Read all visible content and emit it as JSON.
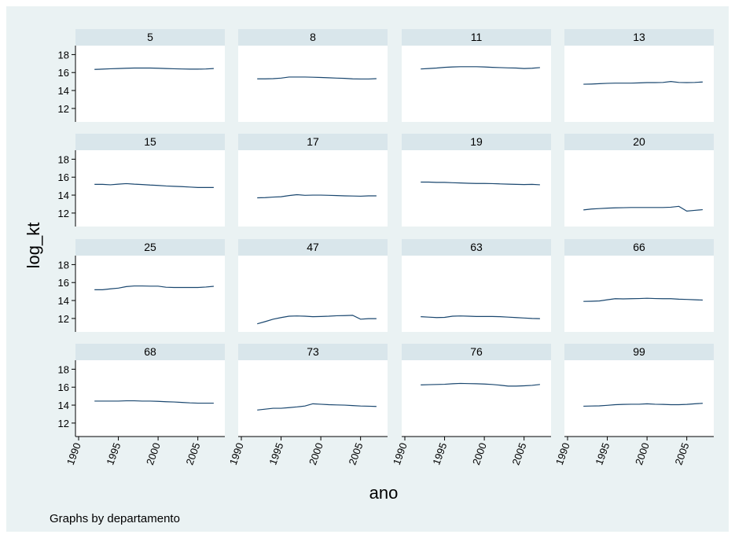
{
  "chart_data": {
    "type": "line",
    "xlabel": "ano",
    "ylabel": "log_kt",
    "note": "Graphs by departamento",
    "xlim": [
      1990,
      2008
    ],
    "ylim": [
      10.5,
      19
    ],
    "xticks": [
      1990,
      1995,
      2000,
      2005
    ],
    "yticks": [
      12,
      14,
      16,
      18
    ],
    "grid": false,
    "colors": {
      "background": "#eaf2f3",
      "plot_bg": "#ffffff",
      "strip": "#d9e6eb",
      "line": "#1a476f",
      "axis": "#000000"
    },
    "x": [
      1992,
      1993,
      1994,
      1995,
      1996,
      1997,
      1998,
      1999,
      2000,
      2001,
      2002,
      2003,
      2004,
      2005,
      2006,
      2007
    ],
    "panels": [
      {
        "label": "5",
        "values": [
          16.35,
          16.38,
          16.42,
          16.45,
          16.48,
          16.5,
          16.5,
          16.5,
          16.48,
          16.45,
          16.42,
          16.4,
          16.38,
          16.38,
          16.4,
          16.45
        ]
      },
      {
        "label": "8",
        "values": [
          15.3,
          15.3,
          15.32,
          15.38,
          15.5,
          15.5,
          15.5,
          15.48,
          15.45,
          15.42,
          15.38,
          15.35,
          15.3,
          15.28,
          15.28,
          15.32
        ]
      },
      {
        "label": "11",
        "values": [
          16.4,
          16.45,
          16.5,
          16.58,
          16.62,
          16.65,
          16.65,
          16.65,
          16.62,
          16.58,
          16.55,
          16.52,
          16.5,
          16.45,
          16.48,
          16.55
        ]
      },
      {
        "label": "13",
        "values": [
          14.7,
          14.72,
          14.76,
          14.8,
          14.82,
          14.82,
          14.82,
          14.85,
          14.88,
          14.88,
          14.9,
          15.0,
          14.9,
          14.88,
          14.9,
          14.95
        ]
      },
      {
        "label": "15",
        "values": [
          15.2,
          15.2,
          15.15,
          15.22,
          15.28,
          15.22,
          15.18,
          15.12,
          15.08,
          15.02,
          14.98,
          14.95,
          14.9,
          14.85,
          14.85,
          14.85
        ]
      },
      {
        "label": "17",
        "values": [
          13.7,
          13.72,
          13.78,
          13.82,
          13.95,
          14.05,
          13.98,
          14.0,
          14.0,
          13.98,
          13.95,
          13.92,
          13.9,
          13.88,
          13.92,
          13.92
        ]
      },
      {
        "label": "19",
        "values": [
          15.45,
          15.45,
          15.42,
          15.42,
          15.38,
          15.35,
          15.32,
          15.3,
          15.3,
          15.28,
          15.25,
          15.22,
          15.2,
          15.18,
          15.2,
          15.15
        ]
      },
      {
        "label": "20",
        "values": [
          12.35,
          12.45,
          12.5,
          12.55,
          12.58,
          12.6,
          12.62,
          12.62,
          12.62,
          12.62,
          12.62,
          12.65,
          12.75,
          12.22,
          12.3,
          12.38
        ]
      },
      {
        "label": "25",
        "values": [
          15.2,
          15.2,
          15.3,
          15.38,
          15.55,
          15.62,
          15.62,
          15.6,
          15.6,
          15.48,
          15.45,
          15.45,
          15.45,
          15.45,
          15.5,
          15.58
        ]
      },
      {
        "label": "47",
        "values": [
          11.4,
          11.65,
          11.92,
          12.1,
          12.25,
          12.28,
          12.25,
          12.2,
          12.22,
          12.25,
          12.3,
          12.32,
          12.35,
          11.92,
          11.98,
          11.98
        ]
      },
      {
        "label": "63",
        "values": [
          12.2,
          12.15,
          12.1,
          12.12,
          12.25,
          12.28,
          12.25,
          12.22,
          12.22,
          12.22,
          12.2,
          12.15,
          12.1,
          12.05,
          12.0,
          11.98
        ]
      },
      {
        "label": "66",
        "values": [
          13.9,
          13.92,
          13.95,
          14.08,
          14.2,
          14.18,
          14.2,
          14.22,
          14.25,
          14.22,
          14.2,
          14.2,
          14.15,
          14.12,
          14.08,
          14.05
        ]
      },
      {
        "label": "68",
        "values": [
          14.45,
          14.45,
          14.45,
          14.45,
          14.48,
          14.48,
          14.45,
          14.45,
          14.42,
          14.38,
          14.35,
          14.3,
          14.25,
          14.22,
          14.22,
          14.22
        ]
      },
      {
        "label": "73",
        "values": [
          13.45,
          13.55,
          13.65,
          13.65,
          13.72,
          13.8,
          13.9,
          14.15,
          14.1,
          14.05,
          14.02,
          14.0,
          13.95,
          13.9,
          13.88,
          13.85
        ]
      },
      {
        "label": "76",
        "values": [
          16.25,
          16.28,
          16.3,
          16.32,
          16.38,
          16.42,
          16.4,
          16.38,
          16.35,
          16.3,
          16.22,
          16.12,
          16.12,
          16.15,
          16.2,
          16.3
        ]
      },
      {
        "label": "99",
        "values": [
          13.88,
          13.9,
          13.92,
          13.98,
          14.05,
          14.08,
          14.1,
          14.1,
          14.15,
          14.1,
          14.08,
          14.05,
          14.05,
          14.08,
          14.15,
          14.2
        ]
      }
    ]
  }
}
